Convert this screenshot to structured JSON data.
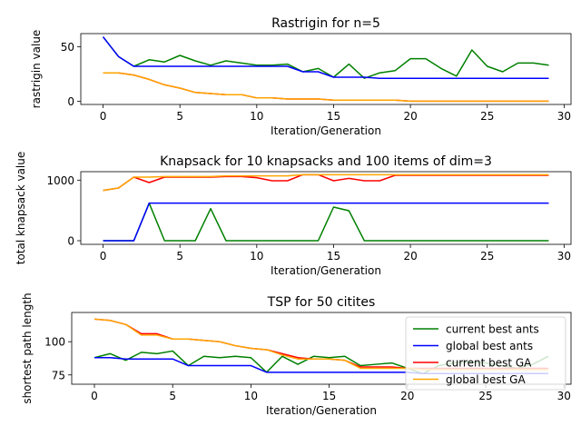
{
  "figure": {
    "background": "#ffffff",
    "legend": {
      "entries": [
        "current best ants",
        "global best ants",
        "current best GA",
        "global best GA"
      ],
      "colors": [
        "#008000",
        "#0000ff",
        "#ff0000",
        "#ffa500"
      ]
    }
  },
  "chart_data": [
    {
      "type": "line",
      "title": "Rastrigin for n=5",
      "xlabel": "Iteration/Generation",
      "ylabel": "rastrigin value",
      "xlim": [
        -1.45,
        30.45
      ],
      "ylim": [
        -3,
        62
      ],
      "xticks": [
        0,
        5,
        10,
        15,
        20,
        25,
        30
      ],
      "yticks": [
        0,
        50
      ],
      "grid": false,
      "legend": "none",
      "x": [
        0,
        1,
        2,
        3,
        4,
        5,
        6,
        7,
        8,
        9,
        10,
        11,
        12,
        13,
        14,
        15,
        16,
        17,
        18,
        19,
        20,
        21,
        22,
        23,
        24,
        25,
        26,
        27,
        28,
        29
      ],
      "series": [
        {
          "name": "current best ants",
          "color": "#008000",
          "values": [
            59,
            41,
            32,
            38,
            36,
            42,
            37,
            33,
            37,
            35,
            33,
            33,
            34,
            27,
            30,
            22,
            34,
            21,
            26,
            28,
            39,
            39,
            30,
            23,
            47,
            32,
            27,
            35,
            35,
            33
          ]
        },
        {
          "name": "global best ants",
          "color": "#0000ff",
          "values": [
            59,
            41,
            32,
            32,
            32,
            32,
            32,
            32,
            32,
            32,
            32,
            32,
            32,
            27,
            27,
            22,
            22,
            22,
            21,
            21,
            21,
            21,
            21,
            21,
            21,
            21,
            21,
            21,
            21,
            21
          ]
        },
        {
          "name": "current best GA",
          "color": "#ff0000",
          "values": [
            26,
            26,
            24,
            20,
            15,
            12,
            8,
            7,
            6,
            6,
            3,
            3,
            2,
            2,
            2,
            1,
            1,
            1,
            1,
            1,
            0,
            0,
            0,
            0,
            0,
            0,
            0,
            0,
            0,
            0
          ]
        },
        {
          "name": "global best GA",
          "color": "#ffa500",
          "values": [
            26,
            26,
            24,
            20,
            15,
            12,
            8,
            7,
            6,
            6,
            3,
            3,
            2,
            2,
            2,
            1,
            1,
            1,
            1,
            1,
            0,
            0,
            0,
            0,
            0,
            0,
            0,
            0,
            0,
            0
          ]
        }
      ]
    },
    {
      "type": "line",
      "title": "Knapsack for 10 knapsacks and 100 items of dim=3",
      "xlabel": "Iteration/Generation",
      "ylabel": "total knapsack value",
      "xlim": [
        -1.45,
        30.45
      ],
      "ylim": [
        -60,
        1140
      ],
      "xticks": [
        0,
        5,
        10,
        15,
        20,
        25,
        30
      ],
      "yticks": [
        0,
        1000
      ],
      "grid": false,
      "legend": "none",
      "x": [
        0,
        1,
        2,
        3,
        4,
        5,
        6,
        7,
        8,
        9,
        10,
        11,
        12,
        13,
        14,
        15,
        16,
        17,
        18,
        19,
        20,
        21,
        22,
        23,
        24,
        25,
        26,
        27,
        28,
        29
      ],
      "series": [
        {
          "name": "current best ants",
          "color": "#008000",
          "values": [
            0,
            0,
            0,
            620,
            0,
            0,
            0,
            530,
            0,
            0,
            0,
            0,
            0,
            0,
            0,
            555,
            495,
            0,
            0,
            0,
            0,
            0,
            0,
            0,
            0,
            0,
            0,
            0,
            0,
            0
          ]
        },
        {
          "name": "global best ants",
          "color": "#0000ff",
          "values": [
            0,
            0,
            0,
            620,
            620,
            620,
            620,
            620,
            620,
            620,
            620,
            620,
            620,
            620,
            620,
            620,
            620,
            620,
            620,
            620,
            620,
            620,
            620,
            620,
            620,
            620,
            620,
            620,
            620,
            620
          ]
        },
        {
          "name": "current best GA",
          "color": "#ff0000",
          "values": [
            830,
            870,
            1050,
            960,
            1050,
            1050,
            1050,
            1050,
            1060,
            1060,
            1040,
            990,
            990,
            1090,
            1090,
            990,
            1030,
            990,
            990,
            1080,
            1080,
            1080,
            1080,
            1080,
            1080,
            1080,
            1080,
            1080,
            1080,
            1080
          ]
        },
        {
          "name": "global best GA",
          "color": "#ffa500",
          "values": [
            830,
            870,
            1050,
            1050,
            1060,
            1060,
            1060,
            1060,
            1070,
            1070,
            1070,
            1070,
            1070,
            1090,
            1090,
            1090,
            1090,
            1090,
            1090,
            1090,
            1090,
            1090,
            1090,
            1090,
            1090,
            1090,
            1090,
            1090,
            1090,
            1090
          ]
        }
      ]
    },
    {
      "type": "line",
      "title": "TSP for 50 citites",
      "xlabel": "Iteration/Generation",
      "ylabel": "shortest path length",
      "xlim": [
        -1.45,
        30.45
      ],
      "ylim": [
        68,
        122
      ],
      "xticks": [
        0,
        5,
        10,
        15,
        20,
        25,
        30
      ],
      "yticks": [
        75,
        100
      ],
      "grid": false,
      "legend": "upper right",
      "x": [
        0,
        1,
        2,
        3,
        4,
        5,
        6,
        7,
        8,
        9,
        10,
        11,
        12,
        13,
        14,
        15,
        16,
        17,
        18,
        19,
        20,
        21,
        22,
        23,
        24,
        25,
        26,
        27,
        28,
        29
      ],
      "series": [
        {
          "name": "current best ants",
          "color": "#008000",
          "values": [
            88,
            91,
            86,
            92,
            91,
            93,
            82,
            89,
            88,
            89,
            88,
            77,
            89,
            83,
            89,
            88,
            89,
            82,
            83,
            84,
            80,
            76,
            82,
            84,
            85,
            84,
            82,
            80,
            83,
            89
          ]
        },
        {
          "name": "global best ants",
          "color": "#0000ff",
          "values": [
            88,
            88,
            87,
            87,
            87,
            87,
            82,
            82,
            82,
            82,
            82,
            77,
            77,
            77,
            77,
            77,
            77,
            77,
            77,
            77,
            77,
            76,
            76,
            76,
            76,
            76,
            76,
            76,
            76,
            76
          ]
        },
        {
          "name": "current best GA",
          "color": "#ff0000",
          "values": [
            117,
            116,
            113,
            106,
            106,
            102,
            102,
            101,
            100,
            97,
            95,
            94,
            91,
            88,
            87,
            87,
            86,
            81,
            81,
            81,
            80,
            80,
            80,
            80,
            80,
            80,
            80,
            80,
            80,
            80
          ]
        },
        {
          "name": "global best GA",
          "color": "#ffa500",
          "values": [
            117,
            116,
            113,
            105,
            105,
            102,
            102,
            101,
            100,
            97,
            95,
            94,
            90,
            87,
            87,
            87,
            86,
            80,
            80,
            80,
            80,
            79,
            79,
            79,
            79,
            79,
            79,
            79,
            79,
            79
          ]
        }
      ]
    }
  ]
}
